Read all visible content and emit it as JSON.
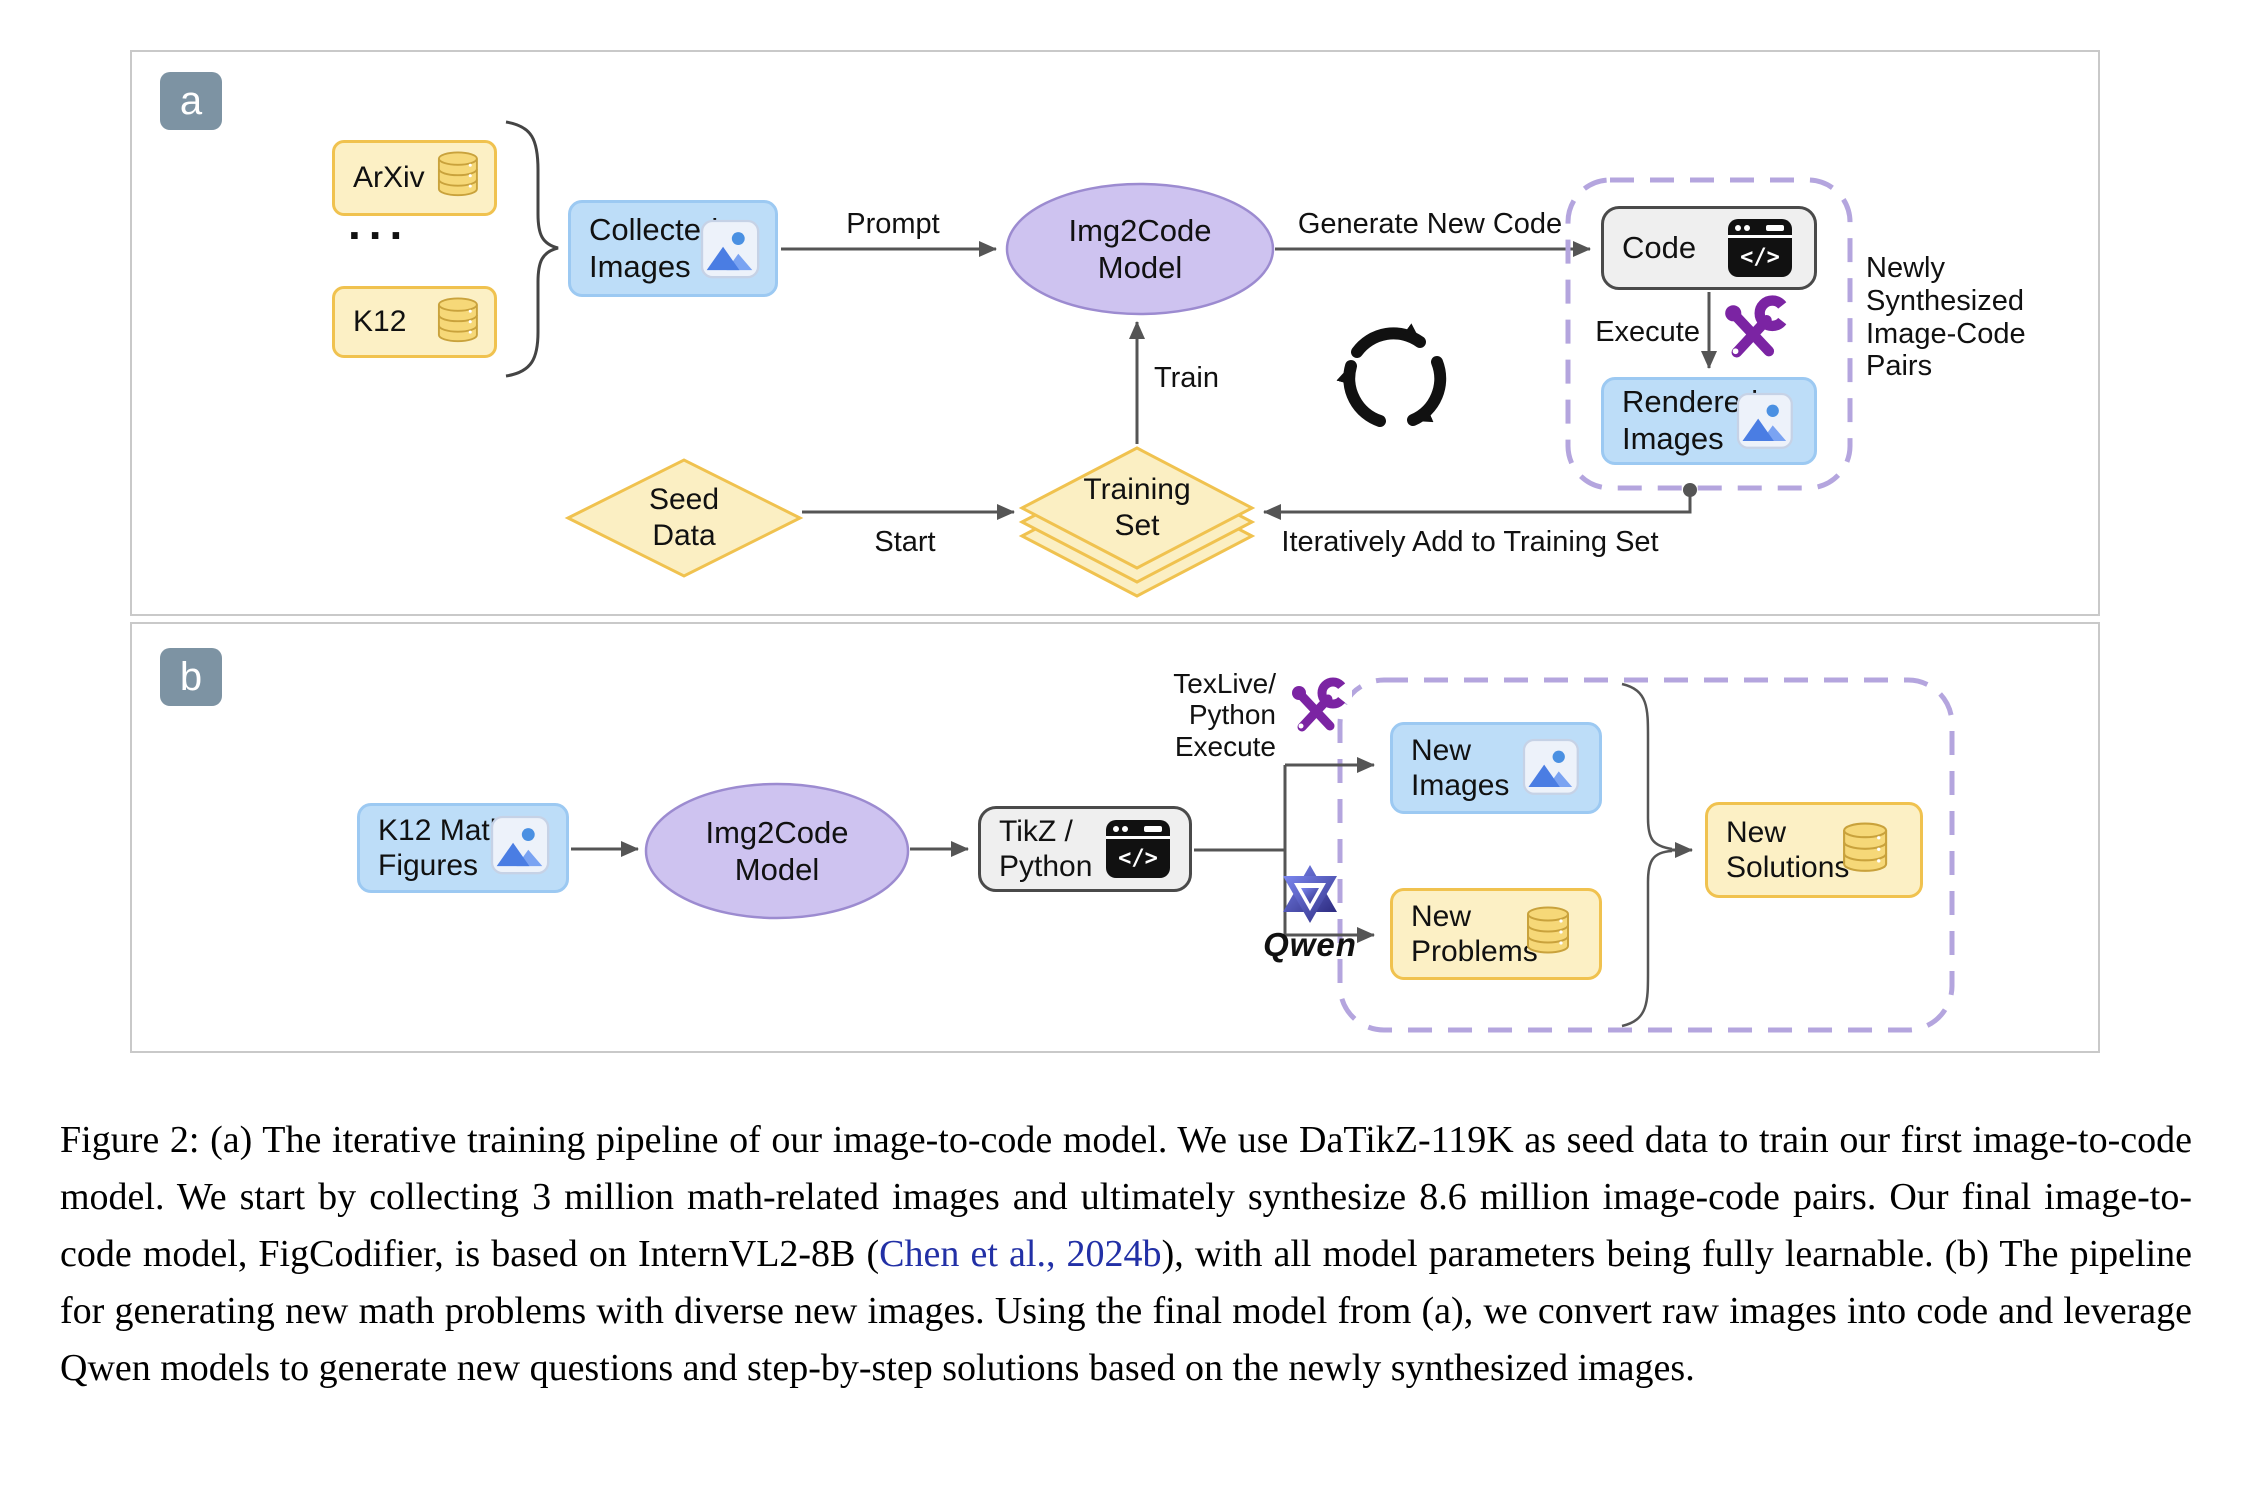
{
  "colors": {
    "box_yellow": "#FCF0C5",
    "box_yellow_border": "#F0C24F",
    "box_blue": "#BDDDF8",
    "box_blue_border": "#9CC9F2",
    "ellipse_purple": "#CEC3F0",
    "ellipse_purple_border": "#9C8BD0",
    "box_gray": "#EFEFEF",
    "box_gray_border": "#4A4A4A",
    "dashed_purple": "#B4A5DE",
    "badge_gray": "#7D93A3",
    "arrow_gray": "#555555",
    "tool_purple": "#7B24A3",
    "link_blue": "#2230A6"
  },
  "icons": {
    "database_icon": "yellow database cylinder",
    "image_icon": "blue mountain photo",
    "code_icon": "black code window",
    "code_glyph": "</>",
    "tools_icon": "purple wrench and screwdriver",
    "loop_icon": "black circular arrows",
    "qwen_logo": "Qwen geometric logo"
  },
  "panel_a": {
    "badge": "a",
    "arxiv": "ArXiv",
    "ellipsis": "...",
    "k12": "K12",
    "collected_images": "Collected\nImages",
    "prompt": "Prompt",
    "img2code_model": "Img2Code\nModel",
    "generate_new_code": "Generate New Code",
    "code": "Code",
    "execute": "Execute",
    "rendered_images": "Rendered\nImages",
    "newly_synthesized": "Newly\nSynthesized\nImage-Code\nPairs",
    "seed_data": "Seed\nData",
    "start": "Start",
    "training_set": "Training\nSet",
    "train": "Train",
    "iteratively_add": "Iteratively Add to Training Set"
  },
  "panel_b": {
    "badge": "b",
    "k12_math_figures": "K12 Math\nFigures",
    "img2code_model": "Img2Code\nModel",
    "tikz_python": "TikZ /\nPython",
    "texlive_python_execute": "TexLive/\nPython\nExecute",
    "qwen": "Qwen",
    "new_images": "New\nImages",
    "new_problems": "New\nProblems",
    "new_solutions": "New\nSolutions"
  },
  "caption": {
    "segments": [
      {
        "text": "Figure 2: (a) The iterative training pipeline of our image-to-code model. We use DaTikZ-119K as seed data to train our first image-to-code model. We start by collecting 3 million math-related images and ultimately synthesize 8.6 million image-code pairs. Our final image-to-code model, FigCodifier, is based on InternVL2-8B ("
      },
      {
        "text": "Chen et al., 2024b",
        "link": true
      },
      {
        "text": "), with all model parameters being fully learnable. (b) The pipeline for generating new math problems with diverse new images. Using the final model from (a), we convert raw images into code and leverage Qwen models to generate new questions and step-by-step solutions based on the newly synthesized images."
      }
    ]
  }
}
